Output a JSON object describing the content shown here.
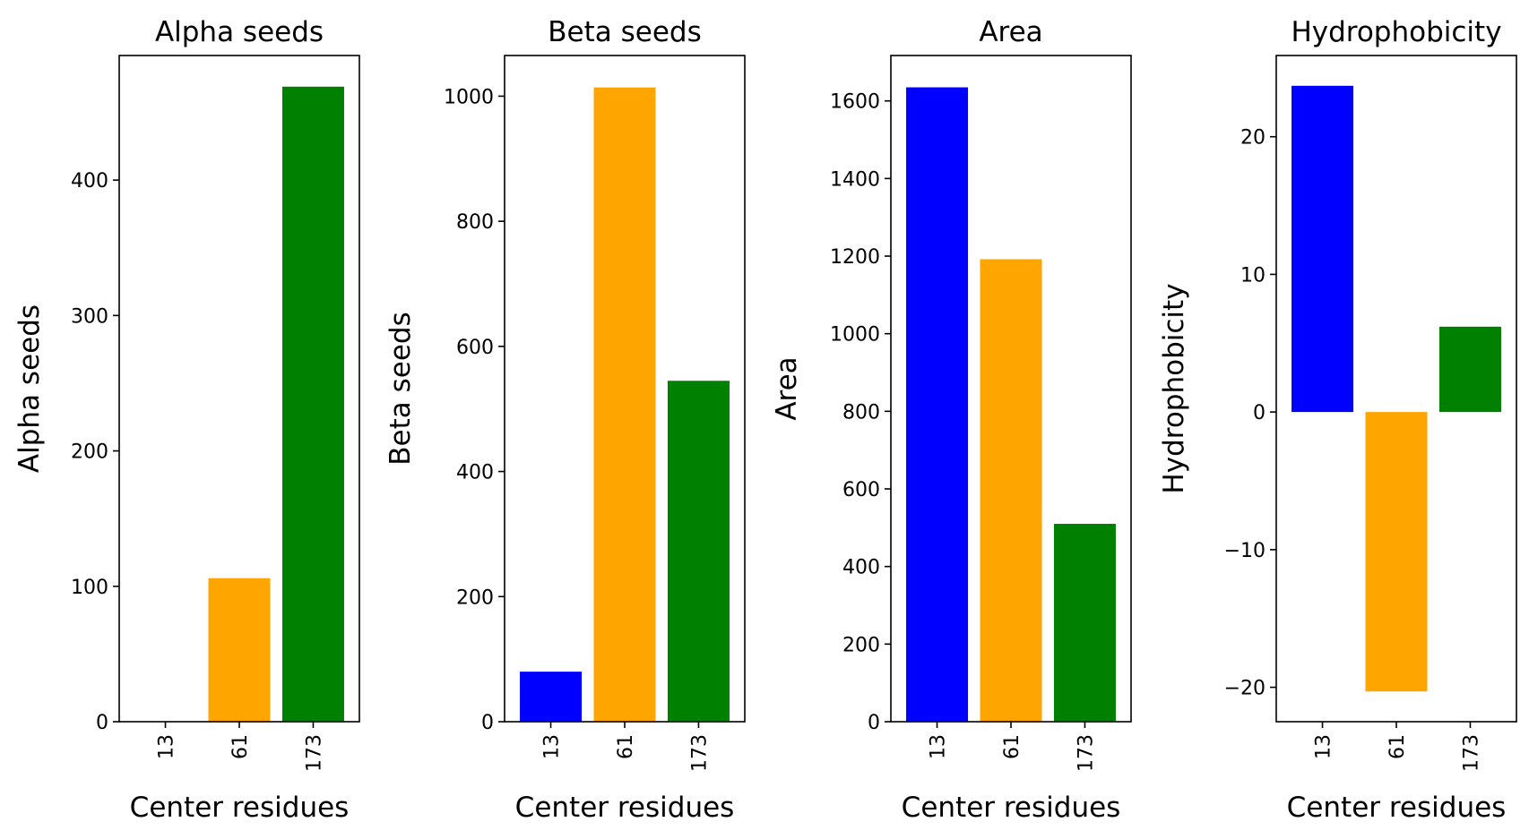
{
  "chart_data": [
    {
      "type": "bar",
      "title": "Alpha seeds",
      "xlabel": "Center residues",
      "ylabel": "Alpha seeds",
      "categories": [
        "13",
        "61",
        "173"
      ],
      "values": [
        0,
        106,
        469
      ],
      "colors": [
        "#0000ff",
        "#ffa500",
        "#008000"
      ],
      "ylim": [
        0,
        492
      ],
      "yticks": [
        0,
        100,
        200,
        300,
        400
      ],
      "ytick_labels": [
        "0",
        "100",
        "200",
        "300",
        "400"
      ],
      "grid": false
    },
    {
      "type": "bar",
      "title": "Beta seeds",
      "xlabel": "Center residues",
      "ylabel": "Beta seeds",
      "categories": [
        "13",
        "61",
        "173"
      ],
      "values": [
        80,
        1014,
        545
      ],
      "colors": [
        "#0000ff",
        "#ffa500",
        "#008000"
      ],
      "ylim": [
        0,
        1065
      ],
      "yticks": [
        0,
        200,
        400,
        600,
        800,
        1000
      ],
      "ytick_labels": [
        "0",
        "200",
        "400",
        "600",
        "800",
        "1000"
      ],
      "grid": false
    },
    {
      "type": "bar",
      "title": "Area",
      "xlabel": "Center residues",
      "ylabel": "Area",
      "categories": [
        "13",
        "61",
        "173"
      ],
      "values": [
        1635,
        1192,
        510
      ],
      "colors": [
        "#0000ff",
        "#ffa500",
        "#008000"
      ],
      "ylim": [
        0,
        1717
      ],
      "yticks": [
        0,
        200,
        400,
        600,
        800,
        1000,
        1200,
        1400,
        1600
      ],
      "ytick_labels": [
        "0",
        "200",
        "400",
        "600",
        "800",
        "1000",
        "1200",
        "1400",
        "1600"
      ],
      "grid": false
    },
    {
      "type": "bar",
      "title": "Hydrophobicity",
      "xlabel": "Center residues",
      "ylabel": "Hydrophobicity",
      "categories": [
        "13",
        "61",
        "173"
      ],
      "values": [
        23.7,
        -20.3,
        6.2
      ],
      "colors": [
        "#0000ff",
        "#ffa500",
        "#008000"
      ],
      "ylim": [
        -22.5,
        25.9
      ],
      "yticks": [
        -20,
        -10,
        0,
        10,
        20
      ],
      "ytick_labels": [
        "−20",
        "−10",
        "0",
        "10",
        "20"
      ],
      "grid": false
    }
  ]
}
